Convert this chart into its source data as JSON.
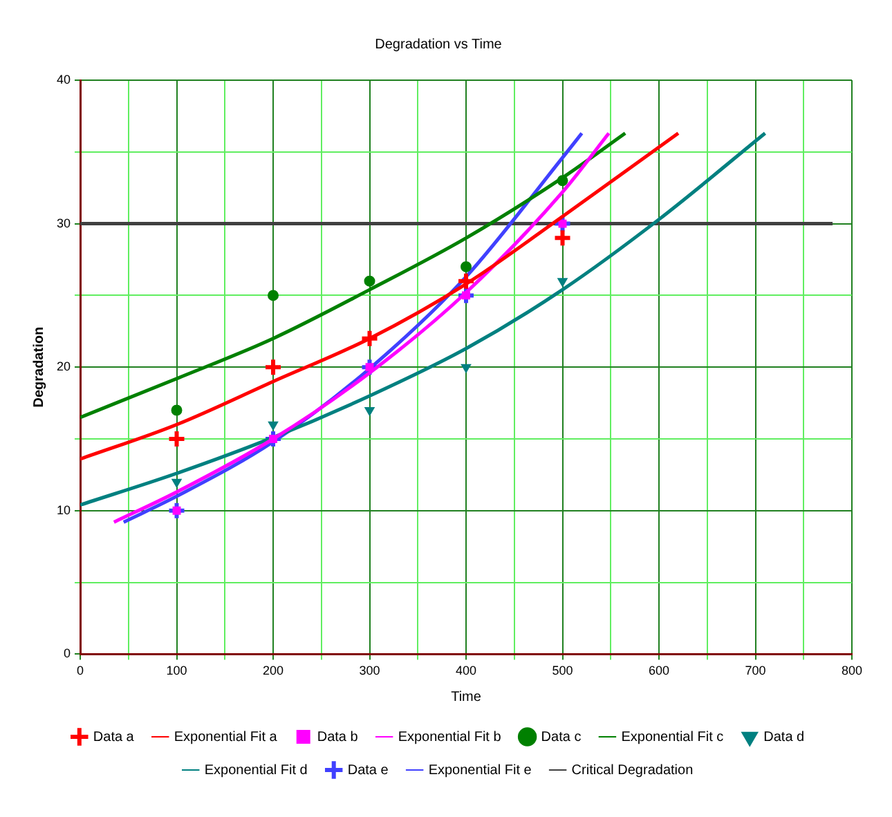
{
  "chart_data": {
    "type": "scatter",
    "title": "Degradation vs Time",
    "xlabel": "Time",
    "ylabel": "Degradation",
    "xlim": [
      0,
      800
    ],
    "xticks": [
      0,
      {
        "value": 50,
        "label": null
      },
      100,
      {
        "value": 150,
        "label": null
      },
      200,
      {
        "value": 250,
        "label": null
      },
      300,
      {
        "value": 350,
        "label": null
      },
      400,
      {
        "value": 450,
        "label": null
      },
      500,
      {
        "value": 550,
        "label": null
      },
      600,
      {
        "value": 650,
        "label": null
      },
      700,
      {
        "value": 750,
        "label": null
      },
      800
    ],
    "ylim": [
      0,
      40
    ],
    "yticks": [
      0,
      {
        "value": 5,
        "label": null
      },
      10,
      {
        "value": 15,
        "label": null
      },
      20,
      {
        "value": 25,
        "label": null
      },
      30,
      {
        "value": 35,
        "label": null
      },
      40
    ],
    "grid": true,
    "legend": "bottom",
    "series": [
      {
        "name": "Data a",
        "type": "scatter",
        "marker": "cross",
        "color": "#ff0000",
        "x": [
          100,
          200,
          300,
          400,
          500
        ],
        "values": [
          15,
          20,
          22,
          26,
          29
        ]
      },
      {
        "name": "Exponential Fit a",
        "type": "line",
        "marker": "none",
        "color": "#ff0000",
        "x": [
          0,
          100,
          200,
          300,
          400,
          500,
          620
        ],
        "values": [
          13.6,
          16,
          19,
          22,
          25.8,
          30.5,
          36.3
        ]
      },
      {
        "name": "Data b",
        "type": "scatter",
        "marker": "square",
        "color": "#ff00ff",
        "x": [
          100,
          200,
          300,
          400,
          500
        ],
        "values": [
          10,
          15,
          20,
          25,
          30
        ]
      },
      {
        "name": "Exponential Fit b",
        "type": "line",
        "marker": "none",
        "color": "#ff00ff",
        "x": [
          35,
          100,
          200,
          300,
          400,
          500,
          548
        ],
        "values": [
          9.2,
          11.3,
          15,
          19.6,
          25.2,
          32.2,
          36.3
        ]
      },
      {
        "name": "Data c",
        "type": "scatter",
        "marker": "circle",
        "color": "#008000",
        "x": [
          100,
          200,
          300,
          400,
          500
        ],
        "values": [
          17,
          25,
          26,
          27,
          33
        ]
      },
      {
        "name": "Exponential Fit c",
        "type": "line",
        "marker": "none",
        "color": "#008000",
        "x": [
          0,
          100,
          200,
          300,
          400,
          500,
          565
        ],
        "values": [
          16.5,
          19.2,
          22,
          25.4,
          29,
          33.2,
          36.3
        ]
      },
      {
        "name": "Data d",
        "type": "scatter",
        "marker": "triangle",
        "color": "#008080",
        "x": [
          100,
          200,
          300,
          400,
          500
        ],
        "values": [
          12,
          16,
          17,
          20,
          26
        ]
      },
      {
        "name": "Exponential Fit d",
        "type": "line",
        "marker": "none",
        "color": "#008080",
        "x": [
          0,
          100,
          200,
          300,
          400,
          500,
          600,
          710
        ],
        "values": [
          10.4,
          12.6,
          15.1,
          18,
          21.3,
          25.4,
          30.3,
          36.3
        ]
      },
      {
        "name": "Data e",
        "type": "scatter",
        "marker": "cross",
        "color": "#4040ff",
        "x": [
          100,
          200,
          300,
          400,
          500
        ],
        "values": [
          10,
          15,
          20,
          25,
          30
        ]
      },
      {
        "name": "Exponential Fit e",
        "type": "line",
        "marker": "none",
        "color": "#4040ff",
        "x": [
          45,
          100,
          200,
          300,
          400,
          500,
          520
        ],
        "values": [
          9.2,
          11,
          14.8,
          19.9,
          26.3,
          34.6,
          36.3
        ]
      },
      {
        "name": "Critical Degradation",
        "type": "line",
        "marker": "none",
        "color": "#404040",
        "x": [
          0,
          780
        ],
        "values": [
          30,
          30
        ]
      }
    ]
  }
}
